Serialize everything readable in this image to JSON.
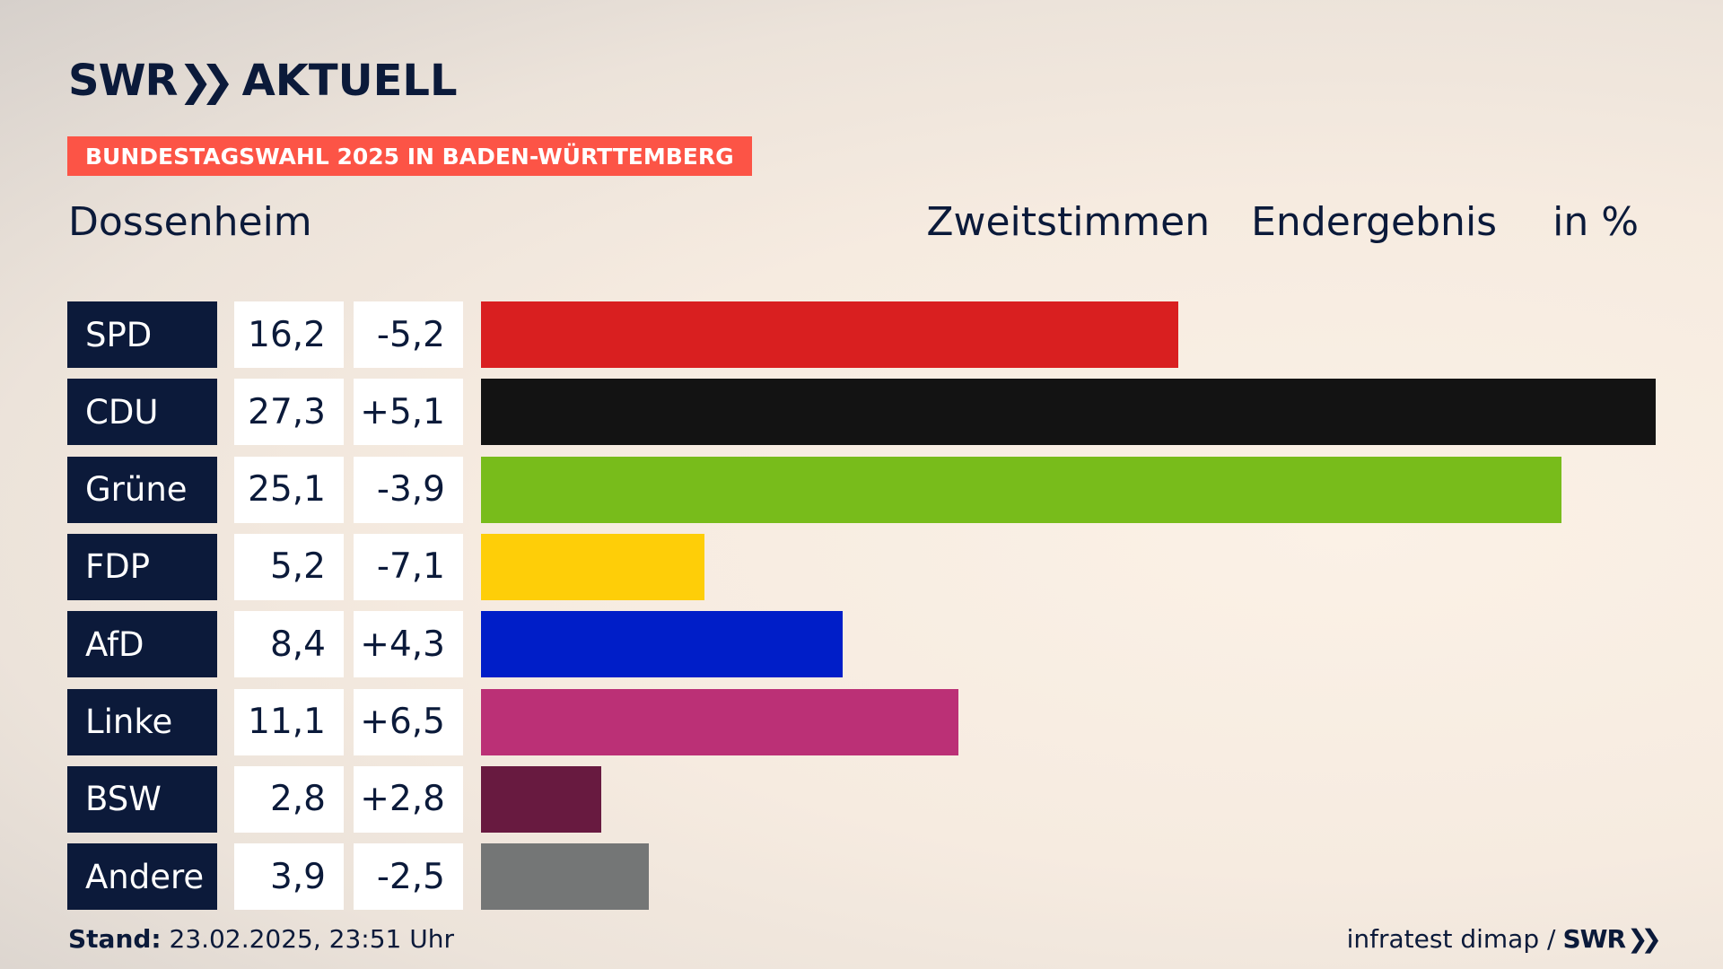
{
  "brand": {
    "logo_left": "SWR",
    "logo_right": "AKTUELL"
  },
  "badge": "BUNDESTAGSWAHL 2025 IN BADEN-WÜRTTEMBERG",
  "location": "Dossenheim",
  "header": {
    "vote_type": "Zweitstimmen",
    "status": "Endergebnis",
    "unit": "in %"
  },
  "footer": {
    "stand_label": "Stand:",
    "stand_value": "23.02.2025, 23:51 Uhr",
    "source": "infratest dimap /",
    "source_brand": "SWR"
  },
  "chart_data": {
    "type": "bar",
    "title": "Zweitstimmen Endergebnis",
    "ylabel": "in %",
    "xlim": [
      0,
      27.3
    ],
    "categories": [
      "SPD",
      "CDU",
      "Grüne",
      "FDP",
      "AfD",
      "Linke",
      "BSW",
      "Andere"
    ],
    "values": [
      16.2,
      27.3,
      25.1,
      5.2,
      8.4,
      11.1,
      2.8,
      3.9
    ],
    "value_labels": [
      "16,2",
      "27,3",
      "25,1",
      "5,2",
      "8,4",
      "11,1",
      "2,8",
      "3,9"
    ],
    "diff_labels": [
      "-5,2",
      "+5,1",
      "-3,9",
      "-7,1",
      "+4,3",
      "+6,5",
      "+2,8",
      "-2,5"
    ],
    "colors": [
      "#d91f20",
      "#131313",
      "#78bc1b",
      "#fece08",
      "#001ec8",
      "#bb3076",
      "#681a40",
      "#747676"
    ]
  }
}
